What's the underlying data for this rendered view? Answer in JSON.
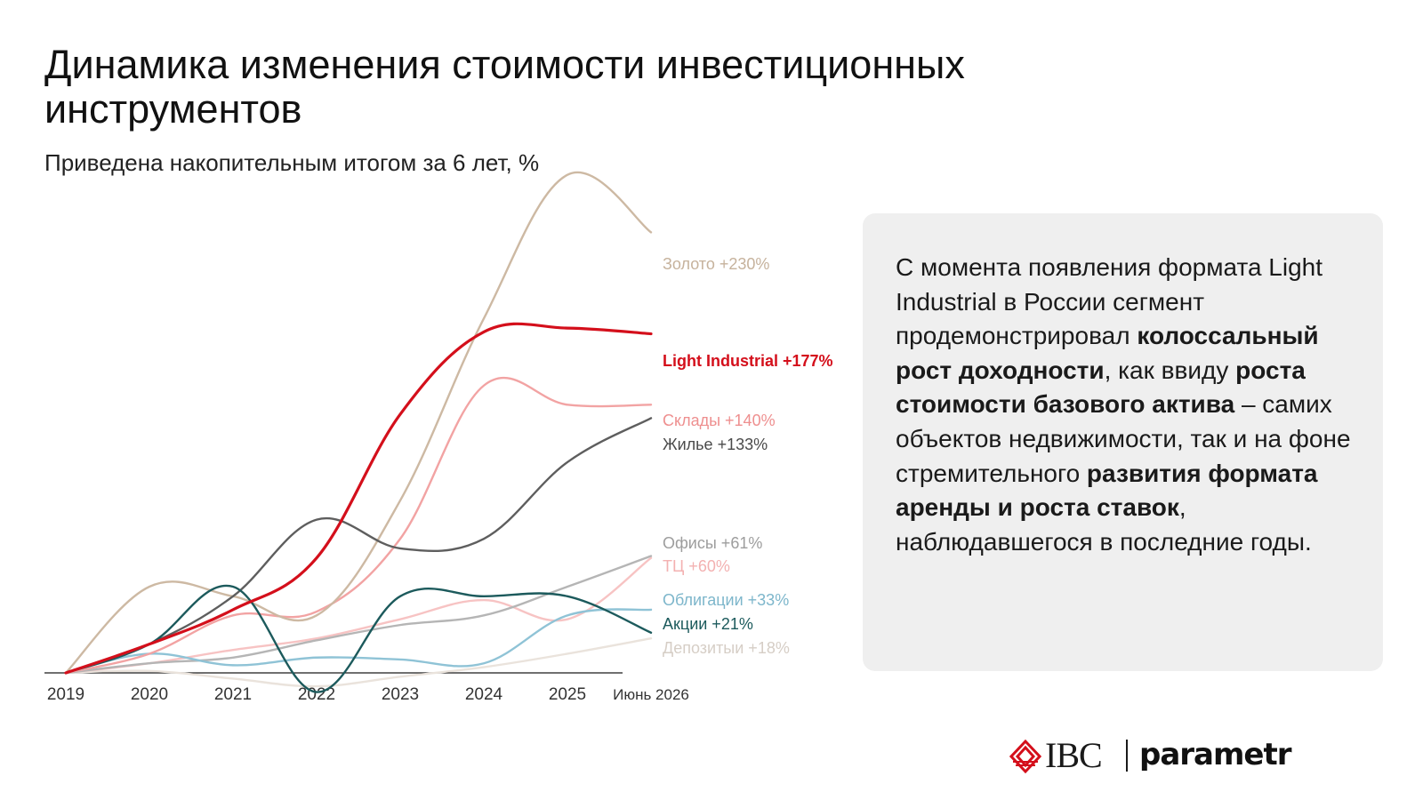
{
  "title": "Динамика изменения стоимости инвестиционных инструментов",
  "subtitle": "Приведена накопительным итогом за 6 лет, %",
  "chart_data": {
    "type": "line",
    "x": [
      "2019",
      "2020",
      "2021",
      "2022",
      "2023",
      "2024",
      "2025",
      "Июнь 2026"
    ],
    "ylim": [
      -10,
      240
    ],
    "grid": false,
    "legend": "labels at line ends",
    "series": [
      {
        "name": "Золото",
        "label": "Золото +230%",
        "color": "#cdb9a3",
        "values": [
          0,
          45,
          40,
          30,
          90,
          185,
          260,
          230
        ]
      },
      {
        "name": "Light Industrial",
        "label": "Light Industrial +177%",
        "color": "#d40f1b",
        "bold": true,
        "values": [
          0,
          15,
          33,
          60,
          135,
          178,
          180,
          177
        ]
      },
      {
        "name": "Склады",
        "label": "Склады +140%",
        "color": "#f2a3a3",
        "values": [
          0,
          10,
          30,
          32,
          70,
          150,
          140,
          140
        ]
      },
      {
        "name": "Жилье",
        "label": "Жилье +133%",
        "color": "#5e5e5e",
        "values": [
          0,
          15,
          40,
          80,
          65,
          70,
          110,
          133
        ]
      },
      {
        "name": "Офисы",
        "label": "Офисы +61%",
        "color": "#b5b5b5",
        "values": [
          0,
          5,
          8,
          17,
          25,
          30,
          45,
          61
        ]
      },
      {
        "name": "ТЦ",
        "label": "ТЦ +60%",
        "color": "#f7c3c3",
        "values": [
          0,
          5,
          12,
          18,
          28,
          38,
          28,
          60
        ]
      },
      {
        "name": "Облигации",
        "label": "Облигации +33%",
        "color": "#8fc3d6",
        "values": [
          0,
          10,
          4,
          8,
          7,
          5,
          30,
          33
        ]
      },
      {
        "name": "Акции",
        "label": "Акции +21%",
        "color": "#1c5a5c",
        "values": [
          0,
          15,
          45,
          -10,
          40,
          40,
          40,
          21
        ]
      },
      {
        "name": "Депозитыи",
        "label": "Депозитыи +18%",
        "color": "#eae3dc",
        "values": [
          0,
          1,
          -3,
          -7,
          -2,
          3,
          10,
          18
        ]
      }
    ]
  },
  "callout": {
    "p1": "С момента появления формата Light Industrial в России сегмент продемонстрировал ",
    "b1": "колоссальный рост доходности",
    "p2": ", как ввиду ",
    "b2": "роста стоимости базового актива",
    "p3": " – самих объектов недвижимости, так и на фоне стремительного ",
    "b3": "развития формата аренды и роста ставок",
    "p4": ", наблюдавшегося в последние годы."
  },
  "logos": {
    "ibc": "IBC",
    "parametr": "parametr"
  },
  "colors": {
    "accent": "#d40f1b",
    "panel": "#efefef"
  }
}
